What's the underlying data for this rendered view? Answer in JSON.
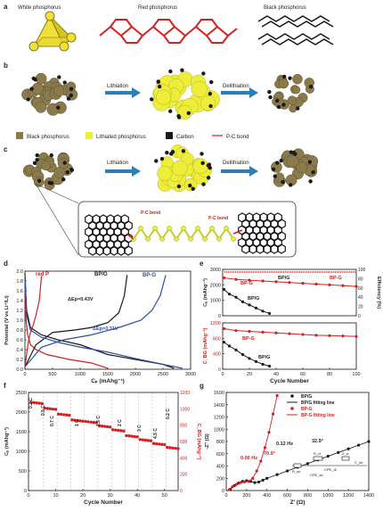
{
  "panel_a": {
    "letter": "a",
    "titles": [
      "White phosphorus",
      "Red phosphorus",
      "Black phosphorus"
    ]
  },
  "panel_b": {
    "letter": "b",
    "arrows": [
      "Lithiation",
      "Delithiation"
    ]
  },
  "legend": {
    "items": [
      {
        "label": "Black phosphorus",
        "color": "#8b7a4c"
      },
      {
        "label": "Lithiated phosphorus",
        "color": "#eded3a"
      },
      {
        "label": "Carbon",
        "color": "#1a1a1a"
      },
      {
        "label": "P-C bond",
        "color": "#d42020"
      }
    ]
  },
  "panel_c": {
    "letter": "c",
    "arrows": [
      "Lithiation",
      "Delithiation"
    ],
    "bond_labels": [
      "P-C bond",
      "P-C bond"
    ]
  },
  "colors": {
    "bpg": "#2d4fa3",
    "bp_g_line": "#1a1a1a",
    "red_p": "#d42020",
    "red_axis": "#d42020"
  },
  "chart_data": [
    {
      "panel": "d",
      "type": "line",
      "xlabel": "Cₚ (mAhg⁻¹)",
      "ylabel": "Potential (V vs Li⁺/Li)",
      "xlim": [
        0,
        3000
      ],
      "ylim": [
        0,
        2.0
      ],
      "xticks": [
        "0",
        "500",
        "1000",
        "1500",
        "2000",
        "2500",
        "3000"
      ],
      "yticks": [
        "0.0",
        "0.2",
        "0.4",
        "0.6",
        "0.8",
        "1.0",
        "1.2",
        "1.4",
        "1.6",
        "1.8",
        "2.0"
      ],
      "annotations": [
        "ΔEp=0.43V",
        "ΔEp=0.31V"
      ],
      "series": [
        {
          "name": "red P",
          "color": "#d42020",
          "discharge": [
            [
              0,
              1.95
            ],
            [
              20,
              1.0
            ],
            [
              50,
              0.7
            ],
            [
              100,
              0.5
            ],
            [
              200,
              0.4
            ],
            [
              400,
              0.3
            ],
            [
              800,
              0.2
            ],
            [
              1200,
              0.13
            ],
            [
              1500,
              0.02
            ]
          ],
          "charge": [
            [
              0,
              0.05
            ],
            [
              30,
              0.3
            ],
            [
              60,
              0.55
            ],
            [
              100,
              0.75
            ],
            [
              150,
              0.9
            ],
            [
              200,
              1.1
            ],
            [
              260,
              1.4
            ],
            [
              300,
              1.9
            ]
          ]
        },
        {
          "name": "BP/G",
          "color": "#1a1a1a",
          "discharge": [
            [
              0,
              1.95
            ],
            [
              30,
              1.2
            ],
            [
              100,
              0.85
            ],
            [
              300,
              0.7
            ],
            [
              600,
              0.6
            ],
            [
              1000,
              0.5
            ],
            [
              1500,
              0.3
            ],
            [
              2000,
              0.2
            ],
            [
              2500,
              0.1
            ],
            [
              2700,
              0.02
            ]
          ],
          "charge": [
            [
              0,
              0.05
            ],
            [
              200,
              0.5
            ],
            [
              500,
              0.75
            ],
            [
              900,
              0.8
            ],
            [
              1200,
              0.85
            ],
            [
              1500,
              0.95
            ],
            [
              1700,
              1.15
            ],
            [
              1800,
              1.5
            ],
            [
              1850,
              1.92
            ]
          ]
        },
        {
          "name": "BP-G",
          "color": "#2d4fa3",
          "discharge": [
            [
              0,
              1.95
            ],
            [
              30,
              1.1
            ],
            [
              100,
              0.8
            ],
            [
              300,
              0.65
            ],
            [
              600,
              0.55
            ],
            [
              1000,
              0.45
            ],
            [
              1500,
              0.35
            ],
            [
              2000,
              0.22
            ],
            [
              2500,
              0.1
            ],
            [
              2850,
              0.02
            ]
          ],
          "charge": [
            [
              0,
              0.05
            ],
            [
              300,
              0.45
            ],
            [
              700,
              0.6
            ],
            [
              1200,
              0.7
            ],
            [
              1700,
              0.85
            ],
            [
              2100,
              1.0
            ],
            [
              2300,
              1.2
            ],
            [
              2450,
              1.5
            ],
            [
              2550,
              1.92
            ]
          ]
        }
      ]
    },
    {
      "panel": "e",
      "type": "line",
      "xlabel": "Cycle Number",
      "ylabel_top": "Cₚ (mAhg⁻¹)",
      "ylabel_bottom": "C_BG (mAhg⁻¹)",
      "ylabel_right": "Efficiency (%)",
      "xlim": [
        0,
        100
      ],
      "ylim_top": [
        0,
        3000
      ],
      "ylim_bottom": [
        0,
        1200
      ],
      "ylim_right": [
        0,
        100
      ],
      "xticks": [
        "0",
        "20",
        "40",
        "60",
        "80",
        "100"
      ],
      "yticks_top": [
        "0",
        "1000",
        "2000",
        "3000"
      ],
      "yticks_bottom": [
        "0",
        "400",
        "800",
        "1200"
      ],
      "yticks_right": [
        "0",
        "20",
        "40",
        "60",
        "80",
        "100"
      ],
      "labels_top": [
        "BP/G",
        "BP-G",
        "BP-G",
        "BP/G"
      ],
      "labels_bottom": [
        "BP-G",
        "BP/G"
      ],
      "series": [
        {
          "name": "BP-G",
          "panel_part": "top",
          "x": [
            1,
            10,
            20,
            30,
            40,
            50,
            60,
            70,
            80,
            90,
            100
          ],
          "y": [
            2450,
            2350,
            2300,
            2250,
            2200,
            2150,
            2100,
            2050,
            2000,
            1950,
            1900
          ]
        },
        {
          "name": "BP/G",
          "panel_part": "top",
          "x": [
            1,
            5,
            10,
            15,
            20,
            25,
            30,
            35
          ],
          "y": [
            1700,
            1400,
            1200,
            900,
            700,
            500,
            300,
            150
          ]
        },
        {
          "name": "BP-G",
          "panel_part": "bottom",
          "x": [
            1,
            10,
            20,
            30,
            40,
            50,
            60,
            70,
            80,
            90,
            100
          ],
          "y": [
            1050,
            1000,
            980,
            960,
            940,
            920,
            900,
            880,
            870,
            860,
            850
          ]
        },
        {
          "name": "BP/G",
          "panel_part": "bottom",
          "x": [
            1,
            5,
            10,
            15,
            20,
            25,
            30,
            35
          ],
          "y": [
            700,
            600,
            500,
            380,
            280,
            200,
            130,
            80
          ]
        }
      ]
    },
    {
      "panel": "f",
      "type": "scatter",
      "xlabel": "Cycle Number",
      "ylabel_left": "Cₚ (mAhg⁻¹)",
      "ylabel_right": "C_BG (mAhg⁻¹)",
      "xlim": [
        0,
        55
      ],
      "ylim_left": [
        0,
        2500
      ],
      "ylim_right": [
        0,
        1200
      ],
      "xticks": [
        "0",
        "10",
        "20",
        "30",
        "40",
        "50"
      ],
      "yticks_left": [
        "0",
        "500",
        "1000",
        "1500",
        "2000",
        "2500"
      ],
      "yticks_right": [
        "0",
        "200",
        "400",
        "600",
        "800",
        "1000",
        "1200"
      ],
      "rate_labels": [
        "0.2 C",
        "0.5 C",
        "0.7 C",
        "1 C",
        "1.5 C",
        "2 C",
        "3 C",
        "4.5 C",
        "0.2 C"
      ],
      "steps": [
        {
          "from": 1,
          "to": 5,
          "value": 2250
        },
        {
          "from": 6,
          "to": 10,
          "value": 2100
        },
        {
          "from": 11,
          "to": 15,
          "value": 1950
        },
        {
          "from": 16,
          "to": 25,
          "value": 1800
        },
        {
          "from": 26,
          "to": 30,
          "value": 1650
        },
        {
          "from": 31,
          "to": 35,
          "value": 1550
        },
        {
          "from": 36,
          "to": 40,
          "value": 1400
        },
        {
          "from": 41,
          "to": 45,
          "value": 1300
        },
        {
          "from": 46,
          "to": 50,
          "value": 1200
        },
        {
          "from": 51,
          "to": 55,
          "value": 1100
        }
      ]
    },
    {
      "panel": "g",
      "type": "scatter",
      "xlabel": "Z' (Ω)",
      "ylabel": "-Z'' (Ω)",
      "xlim": [
        0,
        1400
      ],
      "ylim": [
        0,
        1600
      ],
      "xticks": [
        "0",
        "200",
        "400",
        "600",
        "800",
        "1000",
        "1200",
        "1400"
      ],
      "yticks": [
        "0",
        "200",
        "400",
        "600",
        "800",
        "1000",
        "1200",
        "1400",
        "1600"
      ],
      "legend": [
        "BP/G",
        "BP/G fitting line",
        "BP-G",
        "BP-G fitting line"
      ],
      "annotations": [
        "0.12 Hz",
        "32.9°",
        "0.06 Hz",
        "70.9°"
      ],
      "circuit_labels": [
        "R_sb",
        "R_ct",
        "Z_w",
        "C_int",
        "CPE_sb",
        "CPE_dl"
      ],
      "series": [
        {
          "name": "BP/G",
          "color": "#1a1a1a",
          "x": [
            40,
            80,
            120,
            160,
            200,
            240,
            280,
            320,
            360,
            400,
            500,
            600,
            700,
            800,
            900,
            1000,
            1100,
            1200,
            1300,
            1400
          ],
          "y": [
            20,
            80,
            120,
            150,
            160,
            150,
            130,
            140,
            170,
            200,
            260,
            320,
            380,
            440,
            500,
            560,
            620,
            680,
            740,
            800
          ]
        },
        {
          "name": "BP-G",
          "color": "#d42020",
          "x": [
            30,
            60,
            100,
            140,
            180,
            220,
            260,
            300,
            340,
            380,
            420,
            460,
            500
          ],
          "y": [
            15,
            60,
            100,
            130,
            140,
            150,
            200,
            320,
            480,
            700,
            950,
            1250,
            1550
          ]
        }
      ]
    }
  ]
}
